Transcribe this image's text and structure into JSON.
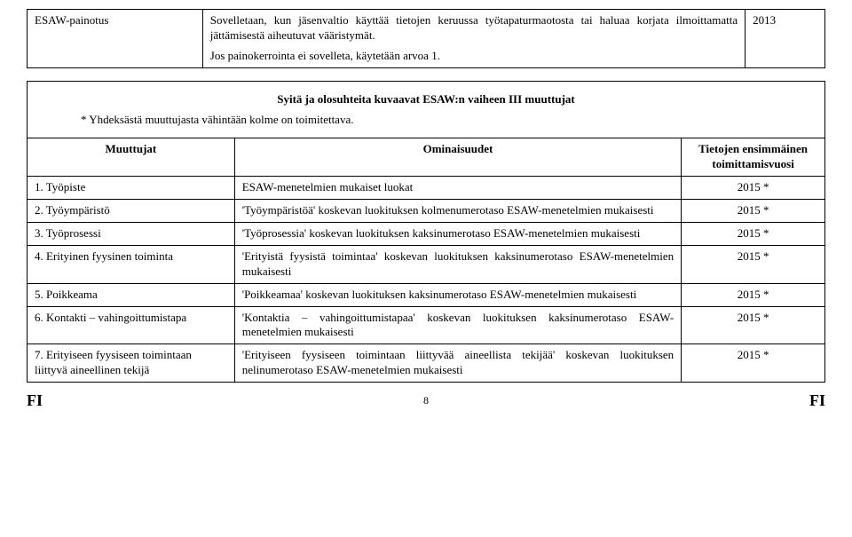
{
  "top_table": {
    "col1_width": "22%",
    "col2_width": "68%",
    "col3_width": "10%",
    "row": {
      "label": "ESAW-painotus",
      "desc_line1": "Sovelletaan, kun jäsenvaltio käyttää tietojen keruussa työtapaturmaotosta tai haluaa korjata ilmoittamatta jättämisestä aiheutuvat vääristymät.",
      "desc_line2": "Jos painokerrointa ei sovelleta, käytetään arvoa 1.",
      "year": "2013"
    }
  },
  "mid_table": {
    "col1_width": "26%",
    "col2_width": "56%",
    "col3_width": "18%",
    "heading_line1": "Syitä ja olosuhteita kuvaavat ESAW:n vaiheen III muuttujat",
    "heading_line2": "* Yhdeksästä muuttujasta vähintään kolme on toimitettava.",
    "head_col1": "Muuttujat",
    "head_col2": "Ominaisuudet",
    "head_col3": "Tietojen ensimmäinen toimittamisvuosi",
    "rows": [
      {
        "c1": "1. Työpiste",
        "c2": "ESAW-menetelmien mukaiset luokat",
        "c3": "2015 *"
      },
      {
        "c1": "2. Työympäristö",
        "c2": "'Työympäristöä' koskevan luokituksen kolmenumerotaso ESAW-menetelmien mukaisesti",
        "c3": "2015 *"
      },
      {
        "c1": "3. Työprosessi",
        "c2": "'Työprosessia' koskevan luokituksen kaksinumerotaso ESAW-menetelmien mukaisesti",
        "c3": "2015 *"
      },
      {
        "c1": "4. Erityinen fyysinen toiminta",
        "c2": "'Erityistä fyysistä toimintaa' koskevan luokituksen kaksinumerotaso ESAW-menetelmien mukaisesti",
        "c3": "2015 *"
      },
      {
        "c1": "5. Poikkeama",
        "c2": "'Poikkeamaa' koskevan luokituksen kaksinumerotaso ESAW-menetelmien mukaisesti",
        "c3": "2015 *"
      },
      {
        "c1": "6. Kontakti – vahingoittumistapa",
        "c2": "'Kontaktia – vahingoittumistapaa' koskevan luokituksen kaksinumerotaso ESAW-menetelmien mukaisesti",
        "c3": "2015 *"
      },
      {
        "c1": "7. Erityiseen fyysiseen toimintaan liittyvä aineellinen tekijä",
        "c2": "'Erityiseen fyysiseen toimintaan liittyvää aineellista tekijää' koskevan luokituksen nelinumerotaso ESAW-menetelmien mukaisesti",
        "c3": "2015 *"
      }
    ]
  },
  "footer": {
    "left": "FI",
    "page": "8",
    "right": "FI"
  }
}
